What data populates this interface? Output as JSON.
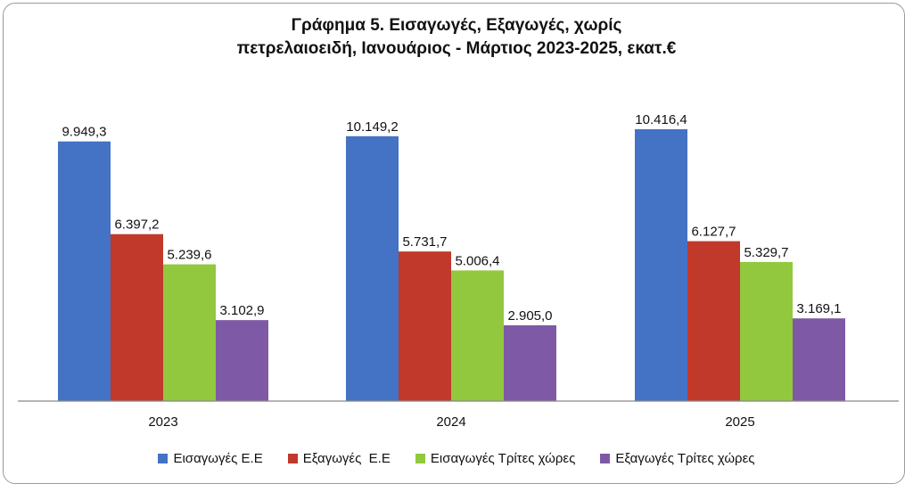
{
  "chart_data": {
    "type": "bar",
    "title_lines": [
      "Γράφημα 5. Εισαγωγές, Εξαγωγές, χωρίς",
      "πετρελαιοειδή, Ιανουάριος - Μάρτιος 2023-2025, εκατ.€"
    ],
    "categories": [
      "2023",
      "2024",
      "2025"
    ],
    "series": [
      {
        "name": "Εισαγωγές Ε.Ε",
        "values": [
          9949.3,
          10149.2,
          10416.4
        ],
        "labels": [
          "9.949,3",
          "10.149,2",
          "10.416,4"
        ],
        "color": "#4472C4"
      },
      {
        "name": "Εξαγωγές  Ε.Ε",
        "values": [
          6397.2,
          5731.7,
          6127.7
        ],
        "labels": [
          "6.397,2",
          "5.731,7",
          "6.127,7"
        ],
        "color": "#C0392B"
      },
      {
        "name": "Εισαγωγές Τρίτες χώρες",
        "values": [
          5239.6,
          5006.4,
          5329.7
        ],
        "labels": [
          "5.239,6",
          "5.006,4",
          "5.329,7"
        ],
        "color": "#92C83E"
      },
      {
        "name": "Εξαγωγές Τρίτες χώρες",
        "values": [
          3102.9,
          2905.0,
          3169.1
        ],
        "labels": [
          "3.102,9",
          "2.905,0",
          "3.169,1"
        ],
        "color": "#7E5AA6"
      }
    ],
    "ylim": [
      0,
      10416.4
    ],
    "grid": false,
    "legend_position": "bottom"
  }
}
